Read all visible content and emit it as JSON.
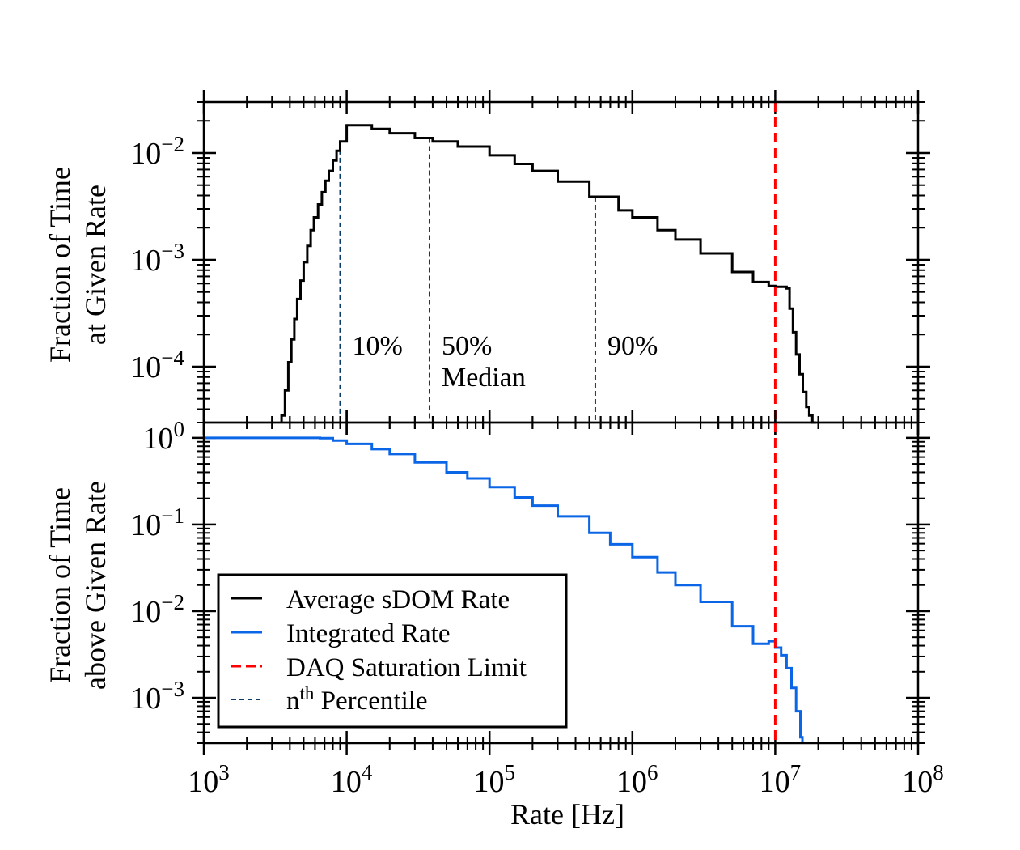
{
  "chart_data": [
    {
      "type": "line",
      "panel": "top",
      "ylabel_lines": [
        "Fraction of Time",
        "at Given Rate"
      ],
      "xscale": "log",
      "yscale": "log",
      "xlim": [
        1000,
        100000000
      ],
      "ylim": [
        3e-05,
        0.03
      ],
      "y_ticks": [
        {
          "value": 0.01,
          "base": "10",
          "exp": "−2"
        },
        {
          "value": 0.001,
          "base": "10",
          "exp": "−3"
        },
        {
          "value": 0.0001,
          "base": "10",
          "exp": "−4"
        }
      ],
      "grid": false,
      "series": [
        {
          "name": "Average sDOM Rate",
          "color": "#000000",
          "style": "steps",
          "x": [
            3500,
            3700,
            3900,
            4100,
            4300,
            4500,
            4750,
            5000,
            5300,
            5600,
            5900,
            6300,
            6700,
            7100,
            7500,
            8000,
            8500,
            9000,
            10000,
            12000,
            15000,
            20000,
            30000,
            40000,
            60000,
            100000,
            150000,
            200000,
            300000,
            500000,
            800000,
            1000000,
            1500000,
            2000000,
            3000000,
            5000000,
            7000000,
            9000000,
            10000000,
            11000000,
            12000000,
            12600000,
            13300000,
            14000000,
            14800000,
            15600000,
            16500000,
            17300000,
            18200000,
            19300000
          ],
          "y": [
            3.5e-05,
            6e-05,
            0.00011,
            0.00018,
            0.00028,
            0.00043,
            0.00064,
            0.00095,
            0.00135,
            0.0019,
            0.0025,
            0.0033,
            0.0043,
            0.0055,
            0.0068,
            0.0085,
            0.0105,
            0.0128,
            0.0182,
            0.0182,
            0.0168,
            0.0153,
            0.0138,
            0.0128,
            0.0115,
            0.0095,
            0.0079,
            0.0068,
            0.0054,
            0.0039,
            0.0029,
            0.0025,
            0.0019,
            0.00155,
            0.00115,
            0.00077,
            0.00062,
            0.00057,
            0.00056,
            0.00056,
            0.00054,
            0.00035,
            0.00021,
            0.00013,
            8.5e-05,
            5.8e-05,
            4.2e-05,
            3.5e-05,
            3e-05,
            3e-05
          ]
        }
      ],
      "percentiles": [
        {
          "label": "10%",
          "x": 9000
        },
        {
          "label": "50%",
          "sublabel": "Median",
          "x": 38000
        },
        {
          "label": "90%",
          "x": 550000
        }
      ],
      "saturation_x": 10000000
    },
    {
      "type": "line",
      "panel": "bottom",
      "ylabel_lines": [
        "Fraction of Time",
        "above Given Rate"
      ],
      "xlabel": "Rate [Hz]",
      "xscale": "log",
      "yscale": "log",
      "xlim": [
        1000,
        100000000
      ],
      "ylim": [
        0.0003,
        1.5
      ],
      "x_ticks": [
        {
          "value": 1000,
          "base": "10",
          "exp": "3"
        },
        {
          "value": 10000,
          "base": "10",
          "exp": "4"
        },
        {
          "value": 100000,
          "base": "10",
          "exp": "5"
        },
        {
          "value": 1000000,
          "base": "10",
          "exp": "6"
        },
        {
          "value": 10000000,
          "base": "10",
          "exp": "7"
        },
        {
          "value": 100000000,
          "base": "10",
          "exp": "8"
        }
      ],
      "y_ticks": [
        {
          "value": 1,
          "base": "10",
          "exp": "0"
        },
        {
          "value": 0.1,
          "base": "10",
          "exp": "−1"
        },
        {
          "value": 0.01,
          "base": "10",
          "exp": "−2"
        },
        {
          "value": 0.001,
          "base": "10",
          "exp": "−3"
        }
      ],
      "grid": false,
      "series": [
        {
          "name": "Integrated Rate",
          "color": "#0a66e6",
          "style": "steps",
          "x": [
            1000,
            3000,
            5000,
            6500,
            8000,
            10000,
            15000,
            20000,
            30000,
            50000,
            70000,
            100000,
            150000,
            200000,
            300000,
            500000,
            700000,
            1000000,
            1500000,
            2000000,
            3000000,
            5000000,
            7000000,
            9000000,
            10000000,
            11000000,
            12000000,
            13000000,
            14000000,
            15000000,
            15500000
          ],
          "y": [
            1.0,
            1.0,
            1.0,
            0.99,
            0.93,
            0.85,
            0.74,
            0.65,
            0.52,
            0.4,
            0.34,
            0.27,
            0.205,
            0.165,
            0.124,
            0.08,
            0.059,
            0.042,
            0.028,
            0.02,
            0.0128,
            0.0067,
            0.0042,
            0.0045,
            0.0038,
            0.0031,
            0.0022,
            0.0013,
            0.0007,
            0.00035,
            0.00028
          ]
        }
      ],
      "saturation_x": 10000000
    }
  ],
  "legend": {
    "placement": "lower-left",
    "items": [
      {
        "label": "Average sDOM Rate",
        "color": "#000000",
        "style": "solid"
      },
      {
        "label": "Integrated Rate",
        "color": "#0a66e6",
        "style": "solid"
      },
      {
        "label": "DAQ Saturation Limit",
        "color": "#ff0000",
        "style": "dashed"
      },
      {
        "label_pre": "n",
        "label_sup": "th",
        "label_post": " Percentile",
        "color": "#0b3a66",
        "style": "dashed"
      }
    ]
  },
  "colors": {
    "saturation": "#ff0000",
    "percentile": "#0b3a66",
    "axes": "#000000"
  }
}
